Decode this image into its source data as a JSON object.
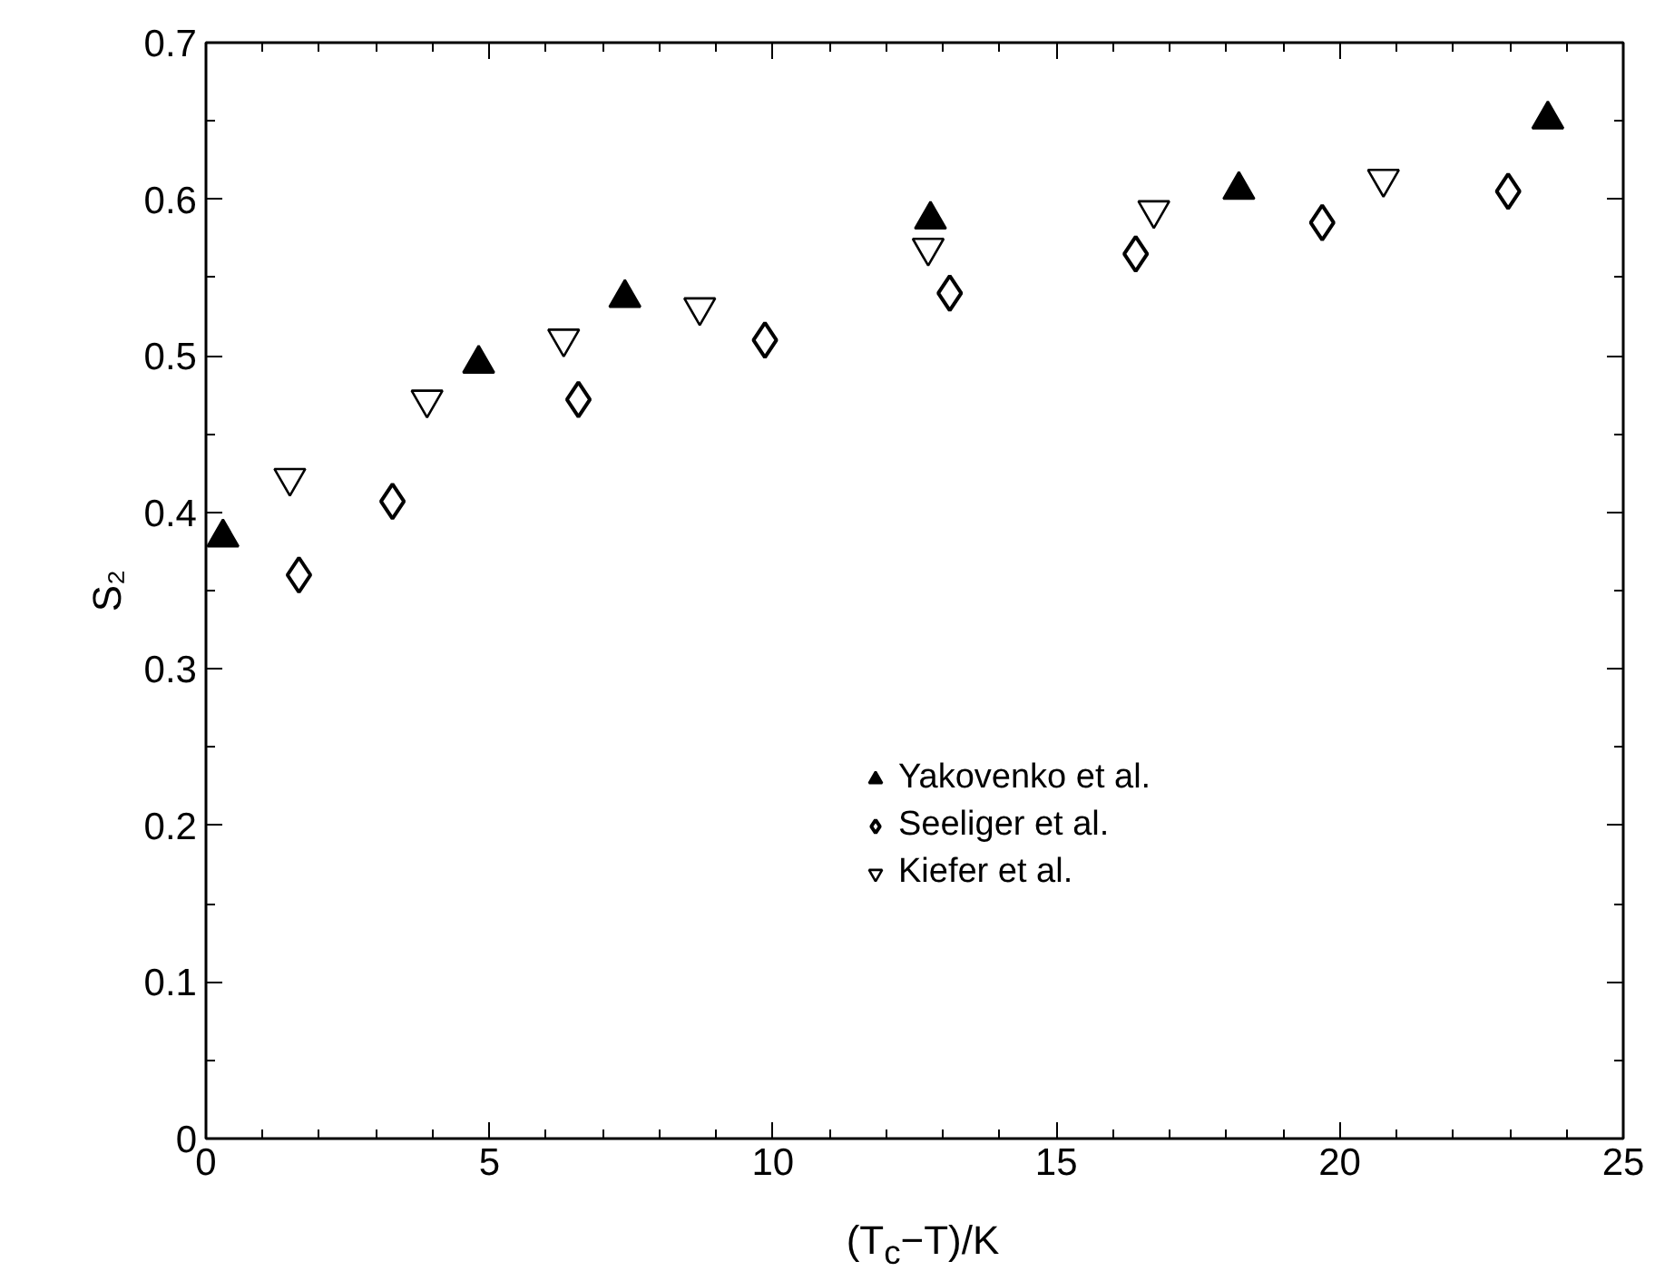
{
  "chart_data": {
    "type": "scatter",
    "xlabel": "(T$_{c}$−T)/K",
    "ylabel": "S₂",
    "xlim": [
      0,
      25
    ],
    "ylim": [
      0,
      0.7
    ],
    "xticks": [
      0,
      {
        "value": 1,
        "label": null
      },
      {
        "value": 2,
        "label": null
      },
      {
        "value": 3,
        "label": null
      },
      {
        "value": 4,
        "label": null
      },
      5,
      {
        "value": 6,
        "label": null
      },
      {
        "value": 7,
        "label": null
      },
      {
        "value": 8,
        "label": null
      },
      {
        "value": 9,
        "label": null
      },
      10,
      {
        "value": 11,
        "label": null
      },
      {
        "value": 12,
        "label": null
      },
      {
        "value": 13,
        "label": null
      },
      {
        "value": 14,
        "label": null
      },
      15,
      {
        "value": 16,
        "label": null
      },
      {
        "value": 17,
        "label": null
      },
      {
        "value": 18,
        "label": null
      },
      {
        "value": 19,
        "label": null
      },
      20,
      {
        "value": 21,
        "label": null
      },
      {
        "value": 22,
        "label": null
      },
      {
        "value": 23,
        "label": null
      },
      {
        "value": 24,
        "label": null
      },
      25
    ],
    "yticks": [
      0,
      {
        "value": 0.05,
        "label": null
      },
      0.1,
      {
        "value": 0.15,
        "label": null
      },
      0.2,
      {
        "value": 0.25,
        "label": null
      },
      0.3,
      {
        "value": 0.35,
        "label": null
      },
      0.4,
      {
        "value": 0.45,
        "label": null
      },
      0.5,
      {
        "value": 0.55,
        "label": null
      },
      0.6,
      {
        "value": 0.65,
        "label": null
      },
      0.7
    ],
    "grid": false,
    "legend": "center",
    "series": [
      {
        "name": "Yakovenko et al.",
        "color": "#000000",
        "marker": "triangle",
        "x": [
          0.3,
          4.81,
          7.39,
          12.78,
          18.22,
          23.67
        ],
        "values": [
          0.384,
          0.495,
          0.537,
          0.587,
          0.606,
          0.651
        ]
      },
      {
        "name": "Seeliger et al.",
        "color": "#000000",
        "marker": "diamond",
        "x": [
          1.64,
          3.29,
          6.57,
          9.86,
          13.12,
          16.4,
          19.69,
          22.97
        ],
        "values": [
          0.36,
          0.407,
          0.472,
          0.51,
          0.54,
          0.565,
          0.585,
          0.605
        ]
      },
      {
        "name": "Kiefer et al.",
        "color": "#000000",
        "marker": "triangle",
        "x": [
          1.48,
          3.9,
          6.31,
          8.71,
          12.74,
          16.72,
          20.77
        ],
        "values": [
          0.422,
          0.472,
          0.511,
          0.531,
          0.569,
          0.593,
          0.613
        ]
      }
    ]
  }
}
